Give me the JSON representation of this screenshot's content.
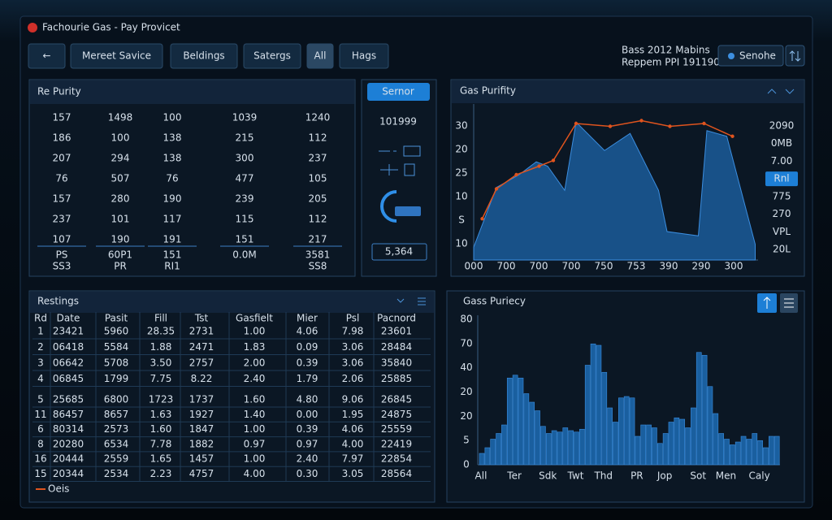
{
  "header": {
    "title": "Fachourie Gas - Pay Provicet",
    "info_line1": "Bass 2012 Mabins",
    "info_line2": "Reppem PPI 191190",
    "button": "Senohe"
  },
  "nav": [
    "←",
    "Mereet Savice",
    "Beldings",
    "Satergs",
    "All",
    "Hags"
  ],
  "nav_active": 4,
  "purity_panel": {
    "title": "Re Purity",
    "rows": [
      [
        "157",
        "1498",
        "100",
        "1039",
        "1240"
      ],
      [
        "186",
        "100",
        "138",
        "215",
        "112"
      ],
      [
        "207",
        "294",
        "138",
        "300",
        "237"
      ],
      [
        "76",
        "507",
        "76",
        "477",
        "105"
      ],
      [
        "157",
        "280",
        "190",
        "239",
        "205"
      ],
      [
        "237",
        "101",
        "117",
        "115",
        "112"
      ],
      [
        "107",
        "190",
        "191",
        "151",
        "217"
      ]
    ],
    "highlight_color": "#e8782a",
    "highlighted": [
      [
        1,
        4
      ],
      [
        2,
        4
      ],
      [
        5,
        1
      ],
      [
        5,
        4
      ]
    ],
    "footer1": [
      "PS",
      "60P1",
      "151",
      "0.0M",
      "3581"
    ],
    "footer2": [
      "SS3",
      "PR",
      "RI1",
      "SS8"
    ]
  },
  "side_panel": {
    "button": "Sernor",
    "value": "101999",
    "box": "5,364"
  },
  "chart_data": [
    {
      "type": "area",
      "title": "Gas Purifity",
      "xlim": [
        0,
        100
      ],
      "ylim": [
        0,
        100
      ],
      "y_labels": [
        "30",
        "20",
        "25",
        "10",
        "S",
        "10"
      ],
      "y2_labels": [
        "2090",
        "0MB",
        "7.00",
        "Rnl",
        "775",
        "270",
        "VPL",
        "20L"
      ],
      "y2_highlight": 3,
      "x_labels": [
        "000",
        "700",
        "700",
        "700",
        "750",
        "753",
        "390",
        "290",
        "300"
      ],
      "series": [
        {
          "kind": "area",
          "color": "#1b5c9a",
          "x": [
            0,
            8,
            16,
            22,
            26,
            32,
            36,
            46,
            55,
            65,
            68,
            79,
            82,
            89,
            99
          ],
          "values": [
            9,
            51,
            60,
            69,
            66,
            49,
            97,
            77,
            89,
            49,
            20,
            17,
            91,
            87,
            11
          ]
        },
        {
          "kind": "line",
          "color": "#e0541e",
          "x": [
            3,
            8,
            15,
            23,
            28,
            36,
            48,
            59,
            69,
            81,
            91
          ],
          "values": [
            29,
            50,
            60,
            66,
            70,
            96,
            94,
            98,
            94,
            96,
            87
          ]
        }
      ]
    },
    {
      "type": "bar",
      "title": "Gass Puriecy",
      "ylim": [
        0,
        100
      ],
      "y_labels": [
        "80",
        "70",
        "40",
        "20",
        "20",
        "5",
        "0"
      ],
      "color": "#1a5f9f",
      "categories": [
        "All",
        null,
        null,
        null,
        null,
        null,
        "Ter",
        null,
        null,
        null,
        null,
        null,
        "Sdk",
        null,
        null,
        null,
        null,
        "Twt",
        null,
        null,
        null,
        null,
        "Thd",
        null,
        null,
        null,
        null,
        null,
        "PR",
        null,
        null,
        null,
        null,
        "Jop",
        null,
        null,
        null,
        null,
        null,
        "Sot",
        null,
        null,
        null,
        null,
        "Men",
        null,
        null,
        null,
        null,
        null,
        "Caly",
        null,
        null,
        null
      ],
      "values": [
        8,
        12,
        18,
        22,
        28,
        61,
        63,
        61,
        50,
        44,
        38,
        27,
        22,
        24,
        23,
        26,
        24,
        23,
        25,
        70,
        85,
        84,
        65,
        40,
        30,
        47,
        48,
        47,
        20,
        28,
        28,
        26,
        15,
        22,
        30,
        33,
        32,
        26,
        40,
        79,
        77,
        55,
        36,
        22,
        18,
        14,
        16,
        20,
        18,
        22,
        17,
        12,
        20,
        20
      ]
    }
  ],
  "readings": {
    "title": "Restings",
    "columns": [
      "Rd",
      "Date",
      "Pasit",
      "Fill",
      "Tst",
      "Gasfielt",
      "Mier",
      "Psl",
      "Pacnord"
    ],
    "rows": [
      [
        "1",
        "23421",
        "5960",
        "28.35",
        "2731",
        "1.00",
        "4.06",
        "7.98",
        "23601"
      ],
      [
        "2",
        "06418",
        "5584",
        "1.88",
        "2471",
        "1.83",
        "0.09",
        "3.06",
        "28484"
      ],
      [
        "3",
        "06642",
        "5708",
        "3.50",
        "2757",
        "2.00",
        "0.39",
        "3.06",
        "35840"
      ],
      [
        "4",
        "06845",
        "1799",
        "7.75",
        "8.22",
        "2.40",
        "1.79",
        "2.06",
        "25885"
      ],
      [
        "5",
        "25685",
        "6800",
        "1723",
        "1737",
        "1.60",
        "4.80",
        "9.06",
        "26845"
      ],
      [
        "11",
        "86457",
        "8657",
        "1.63",
        "1927",
        "1.40",
        "0.00",
        "1.95",
        "24875"
      ],
      [
        "6",
        "80314",
        "2573",
        "1.60",
        "1847",
        "1.00",
        "0.39",
        "4.06",
        "25559"
      ],
      [
        "8",
        "20280",
        "6534",
        "7.78",
        "1882",
        "0.97",
        "0.97",
        "4.00",
        "22419"
      ],
      [
        "16",
        "20444",
        "2559",
        "1.65",
        "1457",
        "1.00",
        "2.40",
        "7.97",
        "22854"
      ],
      [
        "15",
        "20344",
        "2534",
        "2.23",
        "4757",
        "4.00",
        "0.30",
        "3.05",
        "28564"
      ]
    ],
    "legend": "Oeis"
  }
}
